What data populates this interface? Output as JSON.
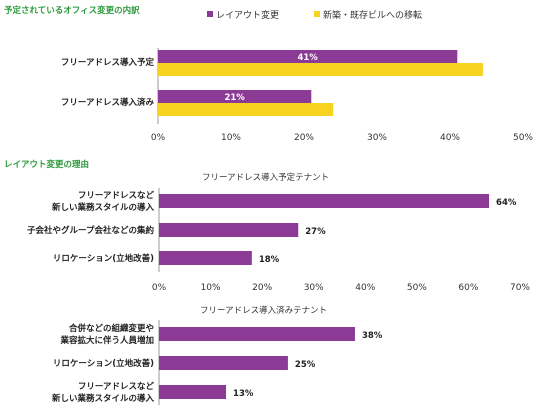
{
  "chart_data": [
    {
      "type": "bar",
      "orientation": "horizontal",
      "title": "予定されているオフィス変更の内訳",
      "categories": [
        "フリーアドレス導入予定",
        "フリーアドレス導入済み"
      ],
      "series": [
        {
          "name": "レイアウト変更",
          "values": [
            41,
            21
          ],
          "color": "#8b3a96",
          "labels": [
            "41%",
            "21%"
          ]
        },
        {
          "name": "新築・既存ビルへの移転",
          "values": [
            44.5,
            24
          ],
          "color": "#f7d21e"
        }
      ],
      "xlim": [
        0,
        50
      ],
      "xticks": [
        "0%",
        "10%",
        "20%",
        "30%",
        "40%",
        "50%"
      ],
      "legend": "top"
    },
    {
      "type": "bar",
      "orientation": "horizontal",
      "section_title": "レイアウト変更の理由",
      "subtitle": "フリーアドレス導入予定テナント",
      "categories": [
        [
          "フリーアドレスなど",
          "新しい業務スタイルの導入"
        ],
        [
          "子会社やグループ会社などの集約"
        ],
        [
          "リロケーション(立地改善)"
        ]
      ],
      "series": [
        {
          "values": [
            64,
            27,
            18
          ],
          "color": "#8b3a96",
          "labels": [
            "64%",
            "27%",
            "18%"
          ]
        }
      ],
      "xlim": [
        0,
        70
      ],
      "xticks": [
        "0%",
        "10%",
        "20%",
        "30%",
        "40%",
        "50%",
        "60%",
        "70%"
      ]
    },
    {
      "type": "bar",
      "orientation": "horizontal",
      "subtitle": "フリーアドレス導入済みテナント",
      "categories": [
        [
          "合併などの組織変更や",
          "業容拡大に伴う人員増加"
        ],
        [
          "リロケーション(立地改善)"
        ],
        [
          "フリーアドレスなど",
          "新しい業務スタイルの導入"
        ]
      ],
      "series": [
        {
          "values": [
            38,
            25,
            13
          ],
          "color": "#8b3a96",
          "labels": [
            "38%",
            "25%",
            "13%"
          ]
        }
      ],
      "xlim": [
        0,
        70
      ]
    }
  ]
}
